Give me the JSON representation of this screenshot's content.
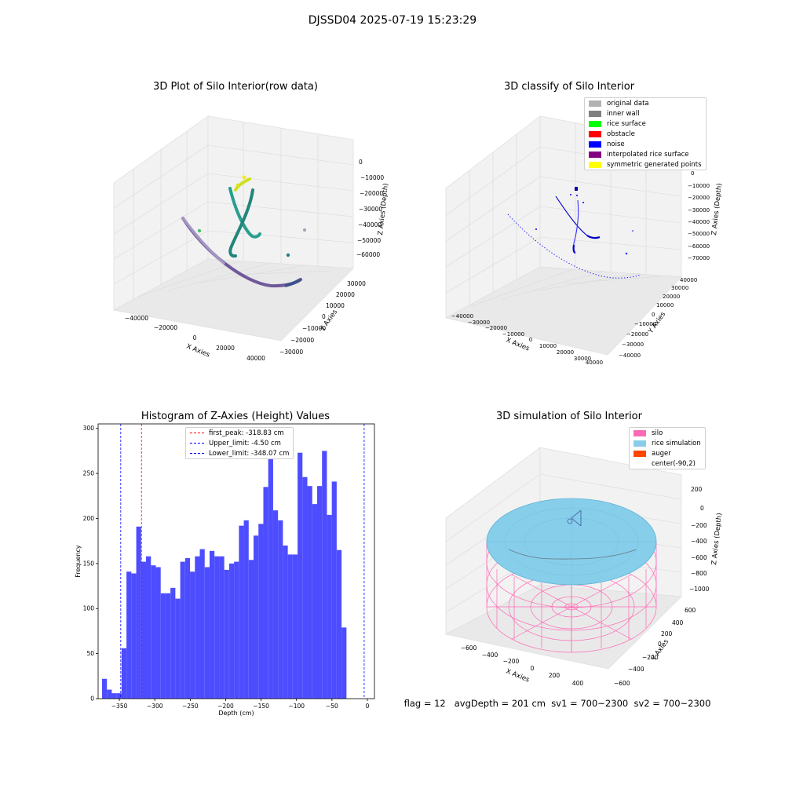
{
  "suptitle": "DJSSD04 2025-07-19 15:23:29",
  "status_line": "flag = 12   avgDepth = 201 cm  sv1 = 700~2300  sv2 = 700~2300",
  "panel1": {
    "title": "3D Plot of Silo Interior(row data)",
    "xlabel": "X Axies",
    "ylabel": "Y Axies",
    "zlabel": "Z Axies (Depth)",
    "xticks": [
      "−40000",
      "−20000",
      "0",
      "20000",
      "40000"
    ],
    "yticks": [
      "−30000",
      "−20000",
      "−10000",
      "0",
      "10000",
      "20000",
      "30000"
    ],
    "zticks": [
      "0",
      "−10000",
      "−20000",
      "−30000",
      "−40000",
      "−50000",
      "−60000"
    ]
  },
  "panel2": {
    "title": "3D classify of Silo Interior",
    "xlabel": "X Axies",
    "ylabel": "Y Axies",
    "zlabel": "Z Axies (Depth)",
    "xticks": [
      "−40000",
      "−30000",
      "−20000",
      "−10000",
      "0",
      "10000",
      "20000",
      "30000",
      "40000"
    ],
    "yticks": [
      "−40000",
      "−30000",
      "−20000",
      "−10000",
      "0",
      "10000",
      "20000",
      "30000",
      "40000"
    ],
    "zticks": [
      "10000",
      "0",
      "−10000",
      "−20000",
      "−30000",
      "−40000",
      "−50000",
      "−60000",
      "−70000"
    ],
    "legend": [
      {
        "label": "original data",
        "color": "#b3b3b3"
      },
      {
        "label": "inner wall",
        "color": "#808080"
      },
      {
        "label": "rice surface",
        "color": "#00ff00"
      },
      {
        "label": "obstacle",
        "color": "#ff0000"
      },
      {
        "label": "noise",
        "color": "#0000ff"
      },
      {
        "label": "interpolated rice surface",
        "color": "#800080"
      },
      {
        "label": "symmetric generated points",
        "color": "#ffff00"
      }
    ]
  },
  "panel4": {
    "title": "3D simulation of Silo Interior",
    "xlabel": "X Axies",
    "ylabel": "Y Axies",
    "zlabel": "Z Axies (Depth)",
    "xticks": [
      "−600",
      "−400",
      "−200",
      "0",
      "200",
      "400"
    ],
    "yticks": [
      "−600",
      "−400",
      "−200",
      "0",
      "200",
      "400",
      "600"
    ],
    "zticks": [
      "200",
      "0",
      "−200",
      "−400",
      "−600",
      "−800",
      "−1000"
    ],
    "legend": [
      {
        "label": "silo",
        "color": "#ff69b4"
      },
      {
        "label": "rice simulation",
        "color": "#87ceeb"
      },
      {
        "label": "auger",
        "color": "#ff4500"
      },
      {
        "label": "center(-90,2)",
        "color": ""
      }
    ]
  },
  "chart_data": {
    "type": "bar",
    "title": "Histogram of Z-Axies (Height) Values",
    "xlabel": "Depth (cm)",
    "ylabel": "Frequency",
    "xlim": [
      -380,
      10
    ],
    "ylim": [
      0,
      305
    ],
    "xticks": [
      -350,
      -300,
      -250,
      -200,
      -150,
      -100,
      -50,
      0
    ],
    "xtick_labels": [
      "−350",
      "−300",
      "−250",
      "−200",
      "−150",
      "−100",
      "−50",
      "0"
    ],
    "yticks": [
      0,
      50,
      100,
      150,
      200,
      250,
      300
    ],
    "bar_color": "#4d4dff",
    "bin_start": -374.5,
    "bin_width": 6.9,
    "values": [
      22,
      10,
      6,
      6,
      56,
      141,
      139,
      191,
      152,
      158,
      148,
      146,
      117,
      117,
      123,
      111,
      152,
      156,
      141,
      158,
      166,
      146,
      164,
      158,
      158,
      143,
      150,
      152,
      192,
      198,
      154,
      181,
      194,
      235,
      290,
      209,
      198,
      170,
      160,
      160,
      273,
      246,
      236,
      216,
      236,
      275,
      204,
      241,
      165,
      79
    ],
    "vlines": [
      {
        "label": "first_peak: -318.83 cm",
        "x": -318.83,
        "color": "#ff0000"
      },
      {
        "label": "Upper_limit: -4.50 cm",
        "x": -4.5,
        "color": "#0000ff"
      },
      {
        "label": "Lower_limit: -348.07 cm",
        "x": -348.07,
        "color": "#0000ff"
      }
    ]
  }
}
